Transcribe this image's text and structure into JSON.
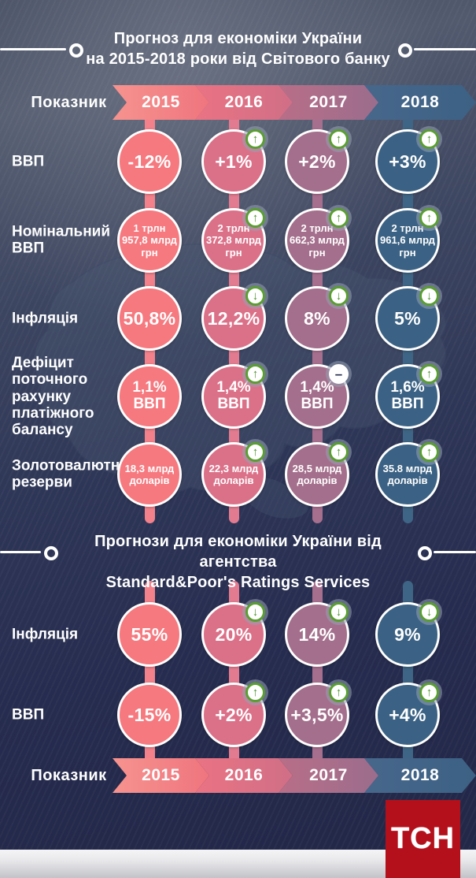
{
  "header": {
    "label": "Показник",
    "years": [
      "2015",
      "2016",
      "2017",
      "2018"
    ]
  },
  "columns": [
    {
      "year": "2015",
      "circle": "#f5797f",
      "line": "#f2818b",
      "arrow_from": "#f6938f",
      "arrow_to": "#ef757e"
    },
    {
      "year": "2016",
      "circle": "#db7189",
      "line": "#e27b90",
      "arrow_from": "#ea7383",
      "arrow_to": "#d06f87"
    },
    {
      "year": "2017",
      "circle": "#a46f8c",
      "line": "#a76f8e",
      "arrow_from": "#b96e87",
      "arrow_to": "#9b6d8d"
    },
    {
      "year": "2018",
      "circle": "#3b6284",
      "line": "#3e6585",
      "arrow_from": "#47678b",
      "arrow_to": "#3c6184"
    }
  ],
  "pokaznyk_arrow": {
    "from": "#f7b290",
    "to": "#f49b8b"
  },
  "trend_icons": {
    "up": "↑",
    "down": "↓",
    "minus": "–"
  },
  "sections": [
    {
      "title_lines": [
        "Прогноз для економіки України",
        "на 2015-2018 роки від Світового банку"
      ],
      "rows": [
        {
          "label": "ВВП",
          "size": "lg",
          "cells": [
            {
              "lines": [
                "-12%"
              ],
              "trend": null
            },
            {
              "lines": [
                "+1%"
              ],
              "trend": "up"
            },
            {
              "lines": [
                "+2%"
              ],
              "trend": "up"
            },
            {
              "lines": [
                "+3%"
              ],
              "trend": "up"
            }
          ]
        },
        {
          "label": "Номінальний ВВП",
          "size": "sm",
          "cells": [
            {
              "lines": [
                "1 трлн",
                "957,8 млрд",
                "грн"
              ],
              "trend": null
            },
            {
              "lines": [
                "2 трлн",
                "372,8 млрд",
                "грн"
              ],
              "trend": "up"
            },
            {
              "lines": [
                "2 трлн",
                "662,3 млрд",
                "грн"
              ],
              "trend": "up"
            },
            {
              "lines": [
                "2 трлн",
                "961,6 млрд",
                "грн"
              ],
              "trend": "up"
            }
          ]
        },
        {
          "label": "Інфляція",
          "size": "lg",
          "cells": [
            {
              "lines": [
                "50,8%"
              ],
              "trend": null
            },
            {
              "lines": [
                "12,2%"
              ],
              "trend": "down"
            },
            {
              "lines": [
                "8%"
              ],
              "trend": "down"
            },
            {
              "lines": [
                "5%"
              ],
              "trend": "down"
            }
          ]
        },
        {
          "label": "Дефіцит поточного рахунку платіжного балансу",
          "size": "md",
          "cells": [
            {
              "lines": [
                "1,1%",
                "ВВП"
              ],
              "trend": null
            },
            {
              "lines": [
                "1,4%",
                "ВВП"
              ],
              "trend": "up"
            },
            {
              "lines": [
                "1,4%",
                "ВВП"
              ],
              "trend": "minus"
            },
            {
              "lines": [
                "1,6%",
                "ВВП"
              ],
              "trend": "up"
            }
          ]
        },
        {
          "label": "Золотовалютні резерви",
          "size": "sm",
          "cells": [
            {
              "lines": [
                "18,3 млрд",
                "доларів"
              ],
              "trend": null
            },
            {
              "lines": [
                "22,3 млрд",
                "доларів"
              ],
              "trend": "up"
            },
            {
              "lines": [
                "28,5 млрд",
                "доларів"
              ],
              "trend": "up"
            },
            {
              "lines": [
                "35.8 млрд",
                "доларів"
              ],
              "trend": "up"
            }
          ]
        }
      ]
    },
    {
      "title_lines": [
        "Прогнози для економіки України від агентства",
        "Standard&Poor's Ratings Services"
      ],
      "rows": [
        {
          "label": "Інфляція",
          "size": "lg",
          "cells": [
            {
              "lines": [
                "55%"
              ],
              "trend": null
            },
            {
              "lines": [
                "20%"
              ],
              "trend": "down"
            },
            {
              "lines": [
                "14%"
              ],
              "trend": "down"
            },
            {
              "lines": [
                "9%"
              ],
              "trend": "down"
            }
          ]
        },
        {
          "label": "ВВП",
          "size": "lg",
          "cells": [
            {
              "lines": [
                "-15%"
              ],
              "trend": null
            },
            {
              "lines": [
                "+2%"
              ],
              "trend": "up"
            },
            {
              "lines": [
                "+3,5%"
              ],
              "trend": "up"
            },
            {
              "lines": [
                "+4%"
              ],
              "trend": "up"
            }
          ]
        }
      ]
    }
  ],
  "footer": {
    "logo_text": "ТСН"
  },
  "chart_data": [
    {
      "type": "table",
      "title": "Прогноз для економіки України на 2015-2018 роки від Світового банку",
      "columns": [
        "2015",
        "2016",
        "2017",
        "2018"
      ],
      "rows": [
        {
          "indicator": "ВВП",
          "values": [
            "-12%",
            "+1%",
            "+2%",
            "+3%"
          ],
          "trends": [
            null,
            "up",
            "up",
            "up"
          ]
        },
        {
          "indicator": "Номінальний ВВП",
          "values": [
            "1 трлн 957,8 млрд грн",
            "2 трлн 372,8 млрд грн",
            "2 трлн 662,3 млрд грн",
            "2 трлн 961,6 млрд грн"
          ],
          "trends": [
            null,
            "up",
            "up",
            "up"
          ]
        },
        {
          "indicator": "Інфляція",
          "values": [
            "50,8%",
            "12,2%",
            "8%",
            "5%"
          ],
          "trends": [
            null,
            "down",
            "down",
            "down"
          ]
        },
        {
          "indicator": "Дефіцит поточного рахунку платіжного балансу",
          "values": [
            "1,1% ВВП",
            "1,4% ВВП",
            "1,4% ВВП",
            "1,6% ВВП"
          ],
          "trends": [
            null,
            "up",
            "same",
            "up"
          ]
        },
        {
          "indicator": "Золотовалютні резерви",
          "values": [
            "18,3 млрд доларів",
            "22,3 млрд доларів",
            "28,5 млрд доларів",
            "35.8 млрд доларів"
          ],
          "trends": [
            null,
            "up",
            "up",
            "up"
          ]
        }
      ]
    },
    {
      "type": "table",
      "title": "Прогнози для економіки України від агентства Standard&Poor's Ratings Services",
      "columns": [
        "2015",
        "2016",
        "2017",
        "2018"
      ],
      "rows": [
        {
          "indicator": "Інфляція",
          "values": [
            "55%",
            "20%",
            "14%",
            "9%"
          ],
          "trends": [
            null,
            "down",
            "down",
            "down"
          ]
        },
        {
          "indicator": "ВВП",
          "values": [
            "-15%",
            "+2%",
            "+3,5%",
            "+4%"
          ],
          "trends": [
            null,
            "up",
            "up",
            "up"
          ]
        }
      ]
    }
  ]
}
